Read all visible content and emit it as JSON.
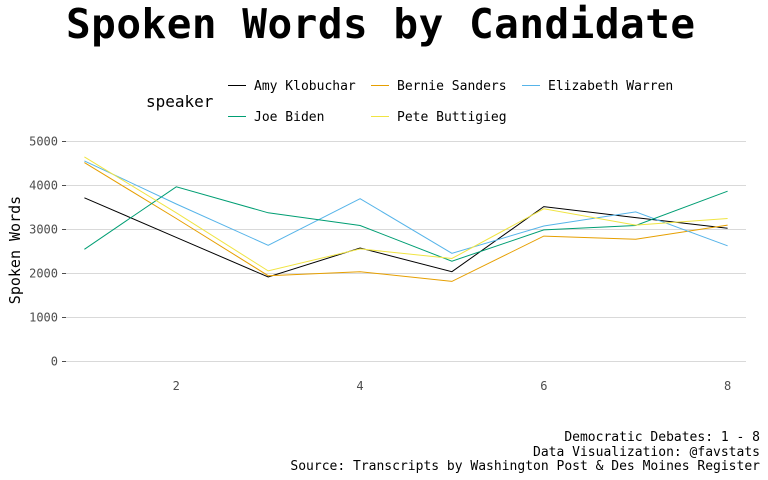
{
  "chart_data": {
    "type": "line",
    "title": "Spoken Words by Candidate",
    "xlabel": "",
    "ylabel": "Spoken Words",
    "legend_title": "speaker",
    "legend_position": "top",
    "xlim": [
      0.8,
      8.2
    ],
    "ylim": [
      0,
      5000
    ],
    "xticks": [
      2,
      4,
      6,
      8
    ],
    "yticks": [
      0,
      1000,
      2000,
      3000,
      4000,
      5000
    ],
    "grid": true,
    "x": [
      1,
      2,
      3,
      4,
      5,
      6,
      7,
      8
    ],
    "series": [
      {
        "name": "Amy Klobuchar",
        "color": "#000000",
        "values": [
          3720,
          2820,
          1920,
          2580,
          2040,
          3520,
          3270,
          3030
        ]
      },
      {
        "name": "Bernie Sanders",
        "color": "#E69F00",
        "values": [
          4520,
          3250,
          1950,
          2040,
          1820,
          2850,
          2780,
          3100
        ]
      },
      {
        "name": "Elizabeth Warren",
        "color": "#56B4E9",
        "values": [
          4560,
          3580,
          2640,
          3700,
          2460,
          3080,
          3400,
          2630
        ]
      },
      {
        "name": "Joe Biden",
        "color": "#009E73",
        "values": [
          2550,
          3970,
          3380,
          3090,
          2280,
          2990,
          3090,
          3870
        ]
      },
      {
        "name": "Pete Buttigieg",
        "color": "#F0E442",
        "values": [
          4650,
          3380,
          2060,
          2560,
          2340,
          3470,
          3100,
          3250
        ]
      }
    ]
  },
  "caption": {
    "line1": "Democratic Debates: 1 - 8",
    "line2": "Data Visualization: @favstats",
    "line3": "Source: Transcripts by Washington Post & Des Moines Register"
  }
}
